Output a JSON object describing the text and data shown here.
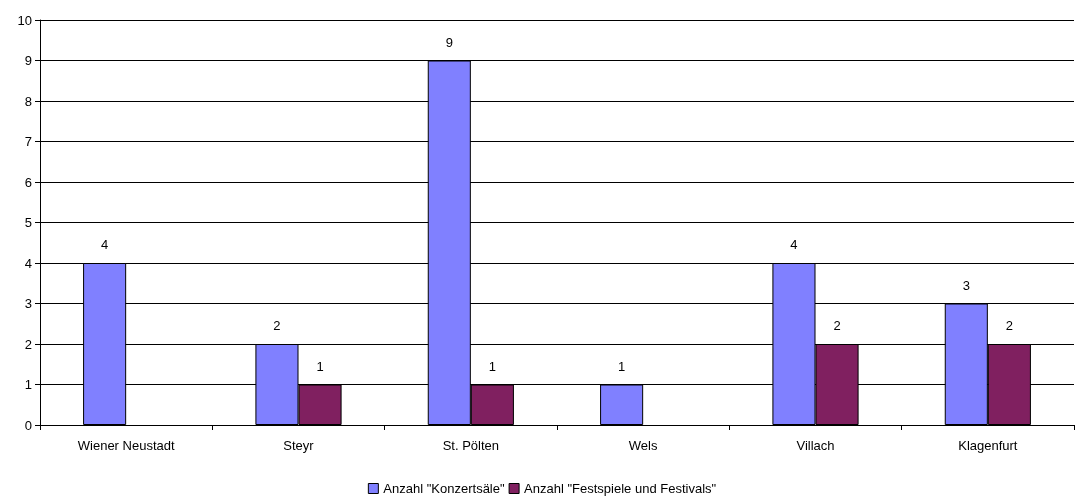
{
  "chart_data": {
    "type": "bar",
    "categories": [
      "Wiener Neustadt",
      "Steyr",
      "St. Pölten",
      "Wels",
      "Villach",
      "Klagenfurt"
    ],
    "series": [
      {
        "name": "Anzahl \"Konzertsäle\"",
        "color": "#8080ff",
        "values": [
          4,
          2,
          9,
          1,
          4,
          3
        ]
      },
      {
        "name": "Anzahl \"Festspiele und Festivals\"",
        "color": "#802060",
        "values": [
          null,
          1,
          1,
          null,
          2,
          2
        ]
      }
    ],
    "ylim": [
      0,
      10
    ],
    "yticks": [
      0,
      1,
      2,
      3,
      4,
      5,
      6,
      7,
      8,
      9,
      10
    ],
    "grid": "y",
    "legend": "bottom",
    "data_labels": true
  }
}
